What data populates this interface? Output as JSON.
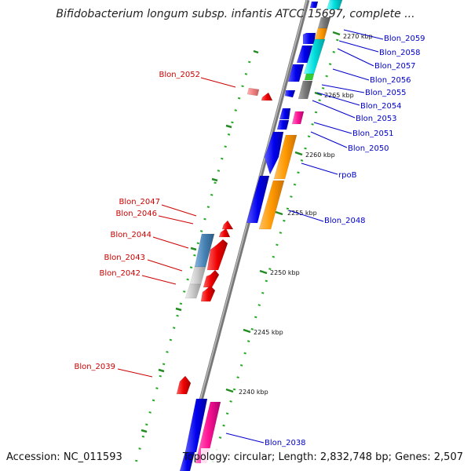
{
  "title": "Bifidobacterium longum subsp. infantis ATCC 15697, complete ...",
  "footer": {
    "accession": "Accession: NC_011593",
    "topology": "Topology: circular; Length: 2,832,748 bp; Genes: 2,507"
  },
  "ticks": [
    "2270 kbp",
    "2265 kbp",
    "2260 kbp",
    "2255 kbp",
    "2250 kbp",
    "2245 kbp",
    "2240 kbp"
  ],
  "genes_reverse": [
    "Blon_2052",
    "Blon_2047",
    "Blon_2046",
    "Blon_2044",
    "Blon_2043",
    "Blon_2042",
    "Blon_2039"
  ],
  "genes_forward": [
    "Blon_2059",
    "Blon_2058",
    "Blon_2057",
    "Blon_2056",
    "Blon_2055",
    "Blon_2054",
    "Blon_2053",
    "Blon_2051",
    "Blon_2050",
    "rpoB",
    "Blon_2048",
    "Blon_2038"
  ],
  "colors": {
    "reverse_label": "#cc0000",
    "forward_label": "#0000cc",
    "tick": "#228b22",
    "backbone": "#888888"
  }
}
